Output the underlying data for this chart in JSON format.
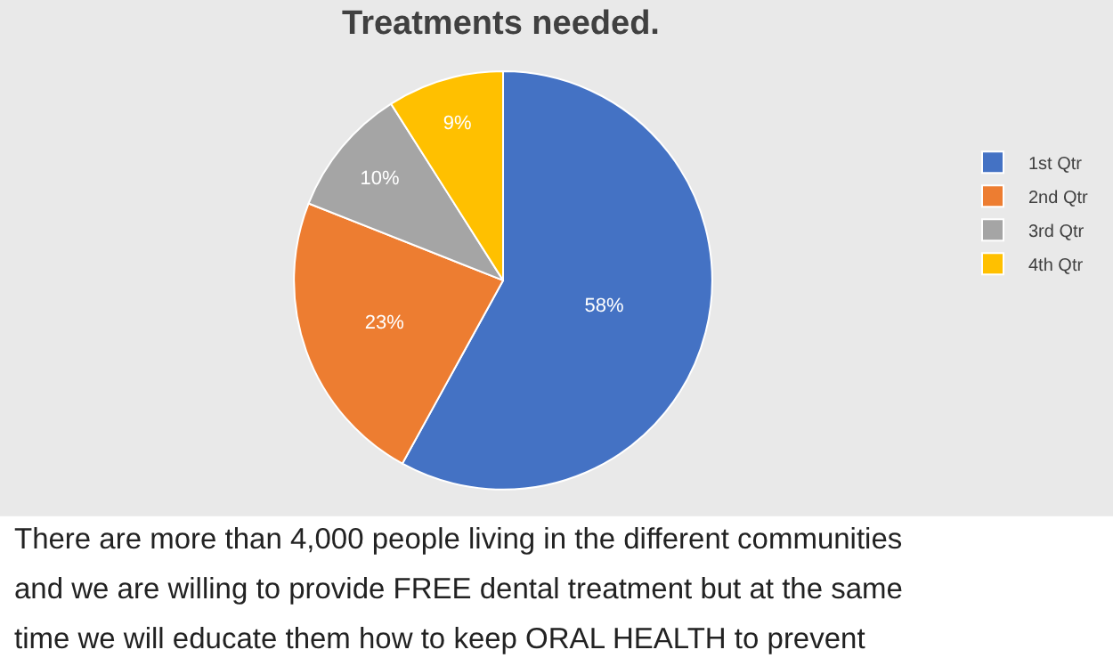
{
  "chart_data": {
    "type": "pie",
    "title": "Treatments needed.",
    "categories": [
      "1st Qtr",
      "2nd Qtr",
      "3rd Qtr",
      "4th Qtr"
    ],
    "values": [
      58,
      23,
      10,
      9
    ],
    "value_labels": [
      "58%",
      "23%",
      "10%",
      "9%"
    ],
    "colors": [
      "#4472c4",
      "#ed7d31",
      "#a5a5a5",
      "#ffc000"
    ],
    "legend": "right",
    "annotations": [
      "There are more than 4,000 people living in the different communities",
      "and we are willing to provide FREE dental treatment but at the same",
      "time we will educate them how to keep ORAL HEALTH to prevent"
    ]
  }
}
